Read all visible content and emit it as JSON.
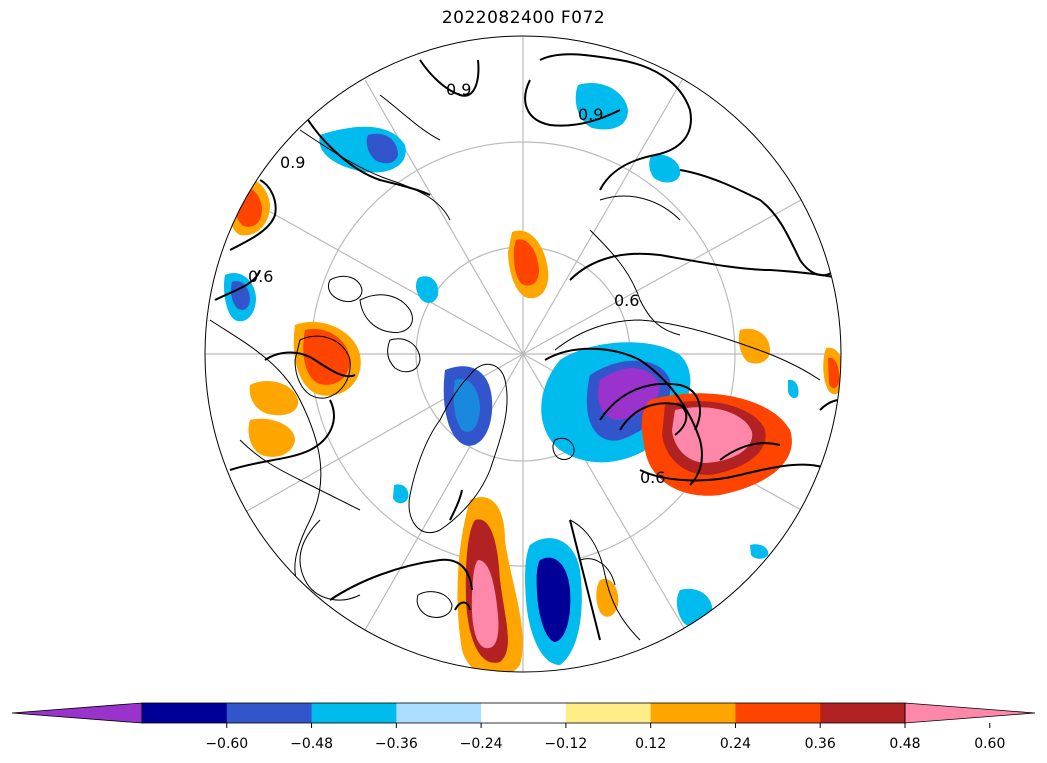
{
  "title": "2022082400 F072",
  "colorbar": {
    "colors": [
      "#9933cc",
      "#000099",
      "#3355cc",
      "#00bbee",
      "#aaddff",
      "#ffffff",
      "#ffee88",
      "#ffa500",
      "#ff4400",
      "#b22222",
      "#ff88aa"
    ],
    "ticks": [
      "−0.60",
      "−0.48",
      "−0.36",
      "−0.24",
      "−0.12",
      "0.12",
      "0.24",
      "0.36",
      "0.48",
      "0.60"
    ],
    "extend": "both"
  },
  "contour_labels": [
    "0.9",
    "0.9",
    "0.9",
    "0.6",
    "0.6",
    "0.6"
  ],
  "map": {
    "projection": "north-polar-stereographic",
    "graticule_color": "#bbbbbb",
    "coastline_color": "#000000"
  }
}
